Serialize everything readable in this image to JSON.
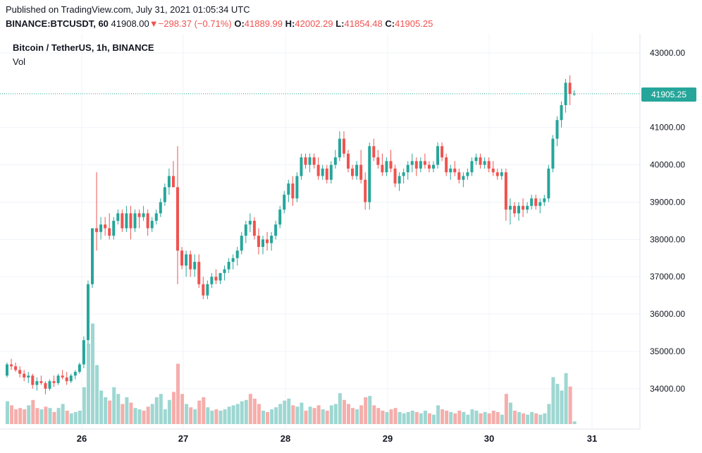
{
  "header": {
    "published": "Published on TradingView.com, July 31, 2021 01:05:34 UTC",
    "symbol": "BINANCE:BTCUSDT, 60",
    "last": "41908.00",
    "change_arrow": "▼",
    "change": "−298.37 (−0.71%)",
    "open_label": "O:",
    "open": "41889.99",
    "high_label": "H:",
    "high": "42002.29",
    "low_label": "L:",
    "low": "41854.48",
    "close_label": "C:",
    "close": "41905.25"
  },
  "legend": {
    "title": "Bitcoin / TetherUS, 1h, BINANCE",
    "volume": "Vol"
  },
  "price_tag": "41905.25",
  "colors": {
    "up": "#26a69a",
    "down": "#ef5350",
    "up_volume": "#9ed7d2",
    "down_volume": "#f5aeab",
    "grid": "#f0f3fa",
    "axis_text": "#131722"
  },
  "chart_data": {
    "type": "candlestick",
    "title": "Bitcoin / TetherUS, 1h, BINANCE",
    "series": [
      {
        "name": "Vol",
        "type": "bar"
      }
    ],
    "x_tick_labels": [
      "26",
      "27",
      "28",
      "29",
      "30",
      "31"
    ],
    "y_tick_labels": [
      "43000.00",
      "41000.00",
      "40000.00",
      "39000.00",
      "38000.00",
      "37000.00",
      "36000.00",
      "35000.00",
      "34000.00"
    ],
    "ylim": [
      33000,
      43400
    ],
    "grid": true,
    "last_price": 41905.25,
    "candles": [
      [
        34350,
        34700,
        34300,
        34650
      ],
      [
        34650,
        34800,
        34500,
        34600
      ],
      [
        34600,
        34700,
        34450,
        34500
      ],
      [
        34500,
        34600,
        34300,
        34400
      ],
      [
        34400,
        34500,
        34200,
        34300
      ],
      [
        34300,
        34450,
        34150,
        34350
      ],
      [
        34350,
        34400,
        34000,
        34100
      ],
      [
        34100,
        34300,
        33950,
        34200
      ],
      [
        34200,
        34350,
        34100,
        34150
      ],
      [
        34150,
        34200,
        33850,
        34000
      ],
      [
        34000,
        34250,
        33950,
        34200
      ],
      [
        34200,
        34350,
        34050,
        34150
      ],
      [
        34150,
        34400,
        34100,
        34350
      ],
      [
        34350,
        34500,
        34250,
        34300
      ],
      [
        34300,
        34450,
        34100,
        34200
      ],
      [
        34200,
        34400,
        34150,
        34350
      ],
      [
        34350,
        34500,
        34250,
        34450
      ],
      [
        34450,
        34700,
        34400,
        34650
      ],
      [
        34650,
        35400,
        34550,
        35300
      ],
      [
        35300,
        36900,
        35200,
        36800
      ],
      [
        36800,
        38300,
        36700,
        38300
      ],
      [
        38300,
        39800,
        37700,
        38200
      ],
      [
        38200,
        38600,
        38000,
        38400
      ],
      [
        38400,
        38600,
        38100,
        38300
      ],
      [
        38300,
        38700,
        38000,
        38100
      ],
      [
        38100,
        38600,
        38000,
        38500
      ],
      [
        38500,
        38800,
        38400,
        38700
      ],
      [
        38700,
        38800,
        38200,
        38300
      ],
      [
        38300,
        38900,
        38200,
        38700
      ],
      [
        38700,
        38900,
        38000,
        38300
      ],
      [
        38300,
        38800,
        38200,
        38700
      ],
      [
        38700,
        38800,
        38300,
        38600
      ],
      [
        38600,
        38900,
        38500,
        38700
      ],
      [
        38700,
        38800,
        38100,
        38300
      ],
      [
        38300,
        38600,
        38200,
        38500
      ],
      [
        38500,
        38800,
        38400,
        38700
      ],
      [
        38700,
        39100,
        38600,
        39000
      ],
      [
        39000,
        39500,
        38900,
        39400
      ],
      [
        39400,
        39900,
        39200,
        39700
      ],
      [
        39700,
        40100,
        39500,
        39400
      ],
      [
        39400,
        40500,
        36800,
        37700
      ],
      [
        37700,
        37800,
        37200,
        37300
      ],
      [
        37300,
        37700,
        37000,
        37600
      ],
      [
        37600,
        37700,
        37000,
        37200
      ],
      [
        37200,
        37600,
        37000,
        37400
      ],
      [
        37400,
        37600,
        36700,
        36800
      ],
      [
        36800,
        37000,
        36400,
        36500
      ],
      [
        36500,
        36900,
        36400,
        36800
      ],
      [
        36800,
        37100,
        36700,
        37000
      ],
      [
        37000,
        37200,
        36800,
        36900
      ],
      [
        36900,
        37100,
        36800,
        37100
      ],
      [
        37100,
        37300,
        36900,
        37200
      ],
      [
        37200,
        37500,
        37100,
        37400
      ],
      [
        37400,
        37600,
        37200,
        37500
      ],
      [
        37500,
        37800,
        37300,
        37700
      ],
      [
        37700,
        38200,
        37600,
        38100
      ],
      [
        38100,
        38500,
        37900,
        38400
      ],
      [
        38400,
        38700,
        38200,
        38500
      ],
      [
        38500,
        38600,
        38000,
        38100
      ],
      [
        38100,
        38300,
        37600,
        37800
      ],
      [
        37800,
        38100,
        37600,
        38000
      ],
      [
        38000,
        38200,
        37700,
        37900
      ],
      [
        37900,
        38200,
        37700,
        38100
      ],
      [
        38100,
        38500,
        38000,
        38400
      ],
      [
        38400,
        38900,
        38300,
        38800
      ],
      [
        38800,
        39300,
        38700,
        39200
      ],
      [
        39200,
        39600,
        39000,
        39500
      ],
      [
        39500,
        39700,
        38900,
        39100
      ],
      [
        39100,
        39800,
        39000,
        39700
      ],
      [
        39700,
        40300,
        39600,
        40200
      ],
      [
        40200,
        40300,
        39900,
        40000
      ],
      [
        40000,
        40300,
        39800,
        40200
      ],
      [
        40200,
        40300,
        39900,
        40000
      ],
      [
        40000,
        40200,
        39600,
        39700
      ],
      [
        39700,
        40000,
        39600,
        39900
      ],
      [
        39900,
        40000,
        39500,
        39600
      ],
      [
        39600,
        40100,
        39500,
        40000
      ],
      [
        40000,
        40400,
        39900,
        40200
      ],
      [
        40200,
        40900,
        40100,
        40700
      ],
      [
        40700,
        40900,
        40200,
        40300
      ],
      [
        40300,
        40400,
        39800,
        39900
      ],
      [
        39900,
        40000,
        39600,
        39700
      ],
      [
        39700,
        40100,
        39600,
        40000
      ],
      [
        40000,
        40400,
        39500,
        39600
      ],
      [
        39600,
        39800,
        38800,
        39000
      ],
      [
        39000,
        40600,
        38800,
        40500
      ],
      [
        40500,
        40700,
        40100,
        40200
      ],
      [
        40200,
        40400,
        39900,
        40000
      ],
      [
        40000,
        40300,
        39700,
        39800
      ],
      [
        39800,
        40200,
        39700,
        40100
      ],
      [
        40100,
        40400,
        39800,
        39900
      ],
      [
        39900,
        40000,
        39400,
        39500
      ],
      [
        39500,
        39800,
        39300,
        39700
      ],
      [
        39700,
        39900,
        39500,
        39800
      ],
      [
        39800,
        40100,
        39600,
        40000
      ],
      [
        40000,
        40300,
        39800,
        40100
      ],
      [
        40100,
        40200,
        39700,
        39900
      ],
      [
        39900,
        40200,
        39800,
        40100
      ],
      [
        40100,
        40300,
        39900,
        40000
      ],
      [
        40000,
        40100,
        39800,
        39900
      ],
      [
        39900,
        40100,
        39800,
        40000
      ],
      [
        40000,
        40600,
        39900,
        40500
      ],
      [
        40500,
        40600,
        40100,
        40200
      ],
      [
        40200,
        40300,
        39700,
        39800
      ],
      [
        39800,
        40000,
        39600,
        39900
      ],
      [
        39900,
        40100,
        39700,
        39800
      ],
      [
        39800,
        39900,
        39500,
        39600
      ],
      [
        39600,
        39800,
        39400,
        39700
      ],
      [
        39700,
        39900,
        39600,
        39800
      ],
      [
        39800,
        40200,
        39700,
        40100
      ],
      [
        40100,
        40300,
        40000,
        40200
      ],
      [
        40200,
        40300,
        39900,
        40000
      ],
      [
        40000,
        40200,
        39900,
        40100
      ],
      [
        40100,
        40200,
        39800,
        39900
      ],
      [
        39900,
        40100,
        39700,
        39800
      ],
      [
        39800,
        39900,
        39600,
        39700
      ],
      [
        39700,
        39900,
        39600,
        39800
      ],
      [
        39800,
        39900,
        38500,
        38800
      ],
      [
        38800,
        39100,
        38400,
        38900
      ],
      [
        38900,
        39000,
        38600,
        38700
      ],
      [
        38700,
        39000,
        38500,
        38900
      ],
      [
        38900,
        39100,
        38600,
        38800
      ],
      [
        38800,
        39000,
        38700,
        38900
      ],
      [
        38900,
        39200,
        38800,
        39100
      ],
      [
        39100,
        39200,
        38800,
        38900
      ],
      [
        38900,
        39100,
        38700,
        39000
      ],
      [
        39000,
        39200,
        38900,
        39100
      ],
      [
        39100,
        40000,
        39000,
        39900
      ],
      [
        39900,
        40800,
        39800,
        40700
      ],
      [
        40700,
        41300,
        40500,
        41200
      ],
      [
        41200,
        41700,
        41000,
        41600
      ],
      [
        41600,
        42300,
        41400,
        42200
      ],
      [
        42200,
        42400,
        41600,
        41900
      ],
      [
        41900,
        42000,
        41850,
        41905
      ]
    ],
    "volume": [
      [
        34,
        1
      ],
      [
        28,
        0
      ],
      [
        22,
        0
      ],
      [
        24,
        0
      ],
      [
        22,
        0
      ],
      [
        28,
        1
      ],
      [
        36,
        0
      ],
      [
        24,
        0
      ],
      [
        22,
        1
      ],
      [
        26,
        0
      ],
      [
        24,
        1
      ],
      [
        18,
        0
      ],
      [
        24,
        1
      ],
      [
        30,
        1
      ],
      [
        20,
        0
      ],
      [
        16,
        1
      ],
      [
        18,
        1
      ],
      [
        20,
        1
      ],
      [
        55,
        1
      ],
      [
        120,
        1
      ],
      [
        150,
        1
      ],
      [
        88,
        1
      ],
      [
        50,
        1
      ],
      [
        40,
        1
      ],
      [
        35,
        0
      ],
      [
        55,
        1
      ],
      [
        45,
        1
      ],
      [
        30,
        0
      ],
      [
        40,
        1
      ],
      [
        32,
        0
      ],
      [
        24,
        1
      ],
      [
        22,
        1
      ],
      [
        20,
        0
      ],
      [
        26,
        0
      ],
      [
        30,
        1
      ],
      [
        40,
        1
      ],
      [
        45,
        1
      ],
      [
        22,
        1
      ],
      [
        36,
        1
      ],
      [
        48,
        0
      ],
      [
        90,
        0
      ],
      [
        45,
        0
      ],
      [
        30,
        1
      ],
      [
        25,
        0
      ],
      [
        22,
        1
      ],
      [
        35,
        0
      ],
      [
        40,
        0
      ],
      [
        25,
        1
      ],
      [
        20,
        1
      ],
      [
        22,
        0
      ],
      [
        20,
        1
      ],
      [
        22,
        1
      ],
      [
        26,
        1
      ],
      [
        28,
        1
      ],
      [
        30,
        1
      ],
      [
        34,
        1
      ],
      [
        36,
        1
      ],
      [
        45,
        0
      ],
      [
        38,
        0
      ],
      [
        30,
        0
      ],
      [
        20,
        1
      ],
      [
        18,
        0
      ],
      [
        22,
        1
      ],
      [
        25,
        1
      ],
      [
        30,
        1
      ],
      [
        35,
        1
      ],
      [
        38,
        1
      ],
      [
        28,
        0
      ],
      [
        26,
        1
      ],
      [
        32,
        1
      ],
      [
        20,
        0
      ],
      [
        26,
        1
      ],
      [
        24,
        0
      ],
      [
        28,
        0
      ],
      [
        22,
        1
      ],
      [
        20,
        0
      ],
      [
        28,
        1
      ],
      [
        30,
        1
      ],
      [
        46,
        1
      ],
      [
        36,
        0
      ],
      [
        30,
        0
      ],
      [
        24,
        0
      ],
      [
        22,
        1
      ],
      [
        28,
        0
      ],
      [
        40,
        0
      ],
      [
        42,
        1
      ],
      [
        28,
        0
      ],
      [
        24,
        0
      ],
      [
        20,
        0
      ],
      [
        18,
        1
      ],
      [
        22,
        0
      ],
      [
        24,
        0
      ],
      [
        18,
        1
      ],
      [
        16,
        1
      ],
      [
        18,
        1
      ],
      [
        20,
        1
      ],
      [
        18,
        0
      ],
      [
        16,
        1
      ],
      [
        20,
        1
      ],
      [
        16,
        0
      ],
      [
        14,
        1
      ],
      [
        28,
        1
      ],
      [
        22,
        0
      ],
      [
        20,
        0
      ],
      [
        18,
        1
      ],
      [
        16,
        0
      ],
      [
        20,
        0
      ],
      [
        18,
        1
      ],
      [
        14,
        1
      ],
      [
        22,
        1
      ],
      [
        20,
        1
      ],
      [
        16,
        0
      ],
      [
        18,
        1
      ],
      [
        16,
        0
      ],
      [
        20,
        0
      ],
      [
        18,
        0
      ],
      [
        14,
        1
      ],
      [
        45,
        0
      ],
      [
        32,
        1
      ],
      [
        20,
        0
      ],
      [
        18,
        1
      ],
      [
        16,
        0
      ],
      [
        14,
        1
      ],
      [
        18,
        1
      ],
      [
        16,
        0
      ],
      [
        14,
        1
      ],
      [
        16,
        1
      ],
      [
        30,
        1
      ],
      [
        70,
        1
      ],
      [
        60,
        1
      ],
      [
        50,
        1
      ],
      [
        76,
        1
      ],
      [
        56,
        0
      ],
      [
        4,
        1
      ]
    ]
  }
}
